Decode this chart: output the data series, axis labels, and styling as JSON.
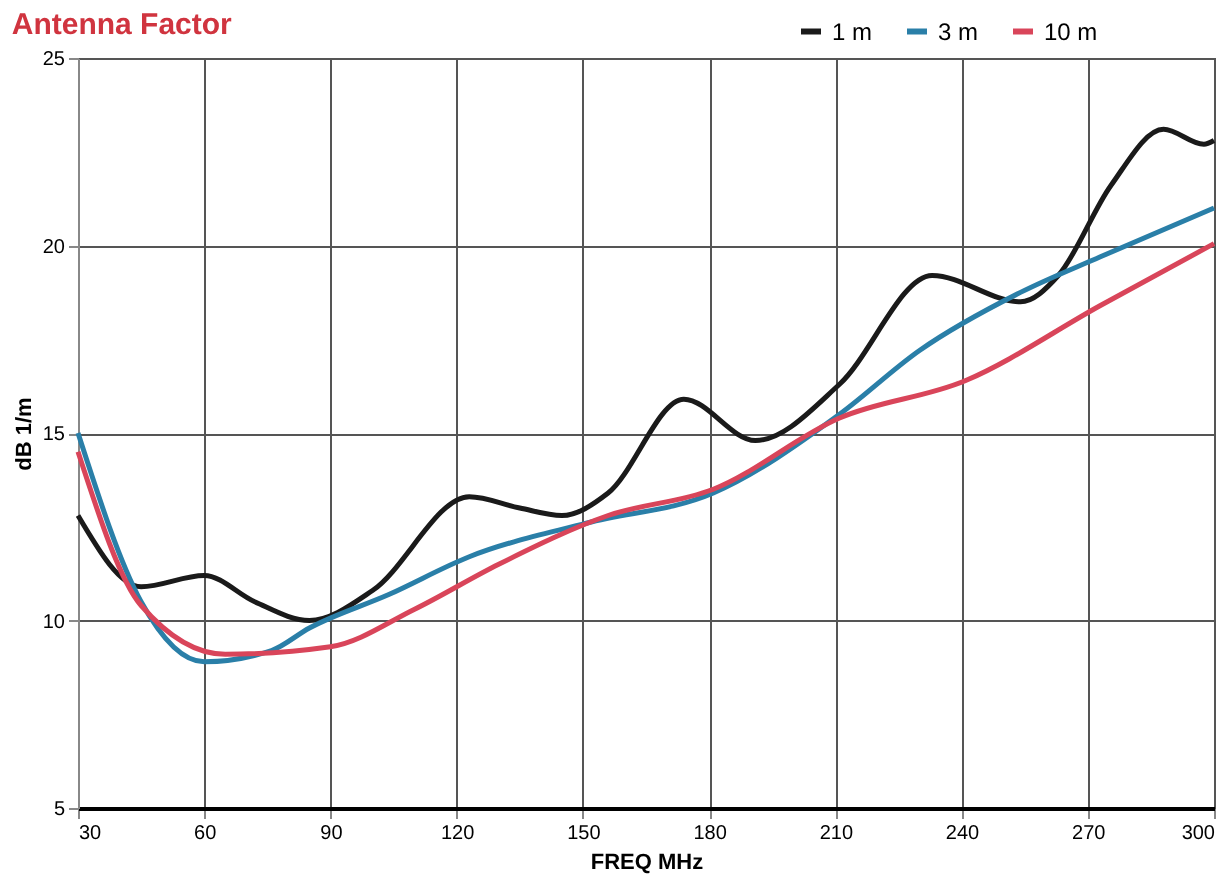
{
  "chart_data": {
    "type": "line",
    "title": "Antenna Factor",
    "xlabel": "FREQ MHz",
    "ylabel": "dB 1/m",
    "xlim": [
      30,
      300
    ],
    "xticks": [
      30,
      60,
      90,
      120,
      150,
      180,
      210,
      240,
      270,
      300
    ],
    "ylim": [
      5,
      25
    ],
    "yticks": [
      5,
      10,
      15,
      20,
      25
    ],
    "grid": true,
    "legend": "top right",
    "line_style": "solid",
    "series": [
      {
        "name": "1 m",
        "color": "#1a1a1a",
        "x": [
          30,
          45,
          60,
          72,
          85,
          100,
          123,
          135,
          145,
          156,
          174,
          191,
          211,
          233,
          254,
          263,
          275.5,
          288,
          297.6,
          300
        ],
        "values": [
          12.8,
          10.9,
          11.2,
          10.5,
          10.0,
          10.8,
          13.3,
          13.0,
          12.8,
          13.4,
          15.9,
          14.8,
          16.3,
          19.2,
          18.5,
          19.2,
          21.6,
          23.1,
          22.7,
          22.8
        ]
      },
      {
        "name": "3 m",
        "color": "#2a7fa8",
        "x": [
          30,
          45,
          60,
          76,
          85,
          104,
          123,
          151,
          181,
          211,
          230,
          254,
          273,
          300
        ],
        "values": [
          15.0,
          10.5,
          8.9,
          9.2,
          9.8,
          10.7,
          11.7,
          12.6,
          13.4,
          15.5,
          17.2,
          18.75,
          19.7,
          21.0
        ]
      },
      {
        "name": "10 m",
        "color": "#d9455a",
        "x": [
          30,
          45,
          65,
          90,
          110,
          130,
          156,
          181,
          211,
          241,
          273,
          300
        ],
        "values": [
          14.5,
          10.4,
          9.1,
          9.3,
          10.3,
          11.5,
          12.8,
          13.5,
          15.4,
          16.4,
          18.4,
          20.05
        ]
      }
    ]
  }
}
